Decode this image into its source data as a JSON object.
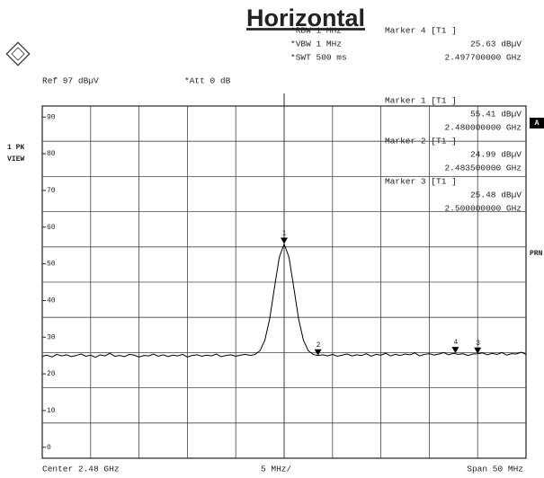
{
  "chart_data": {
    "type": "line",
    "title": "Horizontal",
    "header": {
      "ref": "Ref 97 dBµV",
      "att": "*Att 0 dB",
      "rbw": "*RBW 1 MHz",
      "vbw": "*VBW 1 MHz",
      "swt": "*SWT 500 ms",
      "trace_mode": "1 PK",
      "view": "VIEW",
      "trace_flag": "A",
      "prn": "PRN"
    },
    "footer": {
      "center": "Center 2.48 GHz",
      "scale": "5 MHz/",
      "span": "Span 50 MHz"
    },
    "xlim": [
      2.455,
      2.505
    ],
    "ylim": [
      -3,
      93
    ],
    "yticks": [
      0,
      10,
      20,
      30,
      40,
      50,
      60,
      70,
      80,
      90
    ],
    "color": "#000000",
    "x": [
      2.455,
      2.4555,
      2.456,
      2.4565,
      2.457,
      2.4575,
      2.458,
      2.4585,
      2.459,
      2.4595,
      2.46,
      2.4605,
      2.461,
      2.4615,
      2.462,
      2.4625,
      2.463,
      2.4635,
      2.464,
      2.4645,
      2.465,
      2.4655,
      2.466,
      2.4665,
      2.467,
      2.4675,
      2.468,
      2.4685,
      2.469,
      2.4695,
      2.47,
      2.4705,
      2.471,
      2.4715,
      2.472,
      2.4725,
      2.473,
      2.4735,
      2.474,
      2.4745,
      2.475,
      2.4755,
      2.476,
      2.4765,
      2.477,
      2.4775,
      2.478,
      2.4785,
      2.479,
      2.4795,
      2.48,
      2.4805,
      2.481,
      2.4815,
      2.482,
      2.4825,
      2.483,
      2.4835,
      2.484,
      2.4845,
      2.485,
      2.4855,
      2.486,
      2.4865,
      2.487,
      2.4875,
      2.488,
      2.4885,
      2.489,
      2.4895,
      2.49,
      2.4905,
      2.491,
      2.4915,
      2.492,
      2.4925,
      2.493,
      2.4935,
      2.494,
      2.4945,
      2.495,
      2.4955,
      2.496,
      2.4965,
      2.497,
      2.4975,
      2.498,
      2.4985,
      2.499,
      2.4995,
      2.5,
      2.5005,
      2.501,
      2.5015,
      2.502,
      2.5025,
      2.503,
      2.5035,
      2.504,
      2.5045,
      2.505
    ],
    "values": [
      24.8,
      25.1,
      24.6,
      25.3,
      24.9,
      25.2,
      24.7,
      25.0,
      25.4,
      24.8,
      25.1,
      24.5,
      25.2,
      24.9,
      25.6,
      24.8,
      25.0,
      24.7,
      25.3,
      25.1,
      24.6,
      25.0,
      24.9,
      25.4,
      24.8,
      25.2,
      24.7,
      25.1,
      24.9,
      25.3,
      24.6,
      25.0,
      25.2,
      24.8,
      25.1,
      24.9,
      25.4,
      24.7,
      25.0,
      25.2,
      24.8,
      25.1,
      25.3,
      25.0,
      25.3,
      26.3,
      29.1,
      34.9,
      43.5,
      51.8,
      55.41,
      51.8,
      43.5,
      34.9,
      29.1,
      26.3,
      25.3,
      24.99,
      25.2,
      24.9,
      25.3,
      24.8,
      25.1,
      25.4,
      24.9,
      25.2,
      25.0,
      25.5,
      24.8,
      25.3,
      25.1,
      25.6,
      24.9,
      25.3,
      25.0,
      25.4,
      25.2,
      25.7,
      24.9,
      25.3,
      25.5,
      25.1,
      25.4,
      25.8,
      25.2,
      25.6,
      25.3,
      25.5,
      25.0,
      25.4,
      25.48,
      25.7,
      25.2,
      25.6,
      25.3,
      25.8,
      25.1,
      25.5,
      25.4,
      25.9,
      25.3
    ],
    "markers": [
      {
        "name": "Marker 1 [T1 ]",
        "symbol": "1",
        "x": 2.48,
        "x_label": "2.480000000 GHz",
        "value": 55.41,
        "value_label": "55.41 dBµV"
      },
      {
        "name": "Marker 2 [T1 ]",
        "symbol": "2",
        "x": 2.4835,
        "x_label": "2.483500000 GHz",
        "value": 24.99,
        "value_label": "24.99 dBµV"
      },
      {
        "name": "Marker 3 [T1 ]",
        "symbol": "3",
        "x": 2.5,
        "x_label": "2.500000000 GHz",
        "value": 25.48,
        "value_label": "25.48 dBµV"
      },
      {
        "name": "Marker 4 [T1 ]",
        "symbol": "4",
        "x": 2.4977,
        "x_label": "2.497700000 GHz",
        "value": 25.63,
        "value_label": "25.63 dBµV"
      }
    ]
  }
}
